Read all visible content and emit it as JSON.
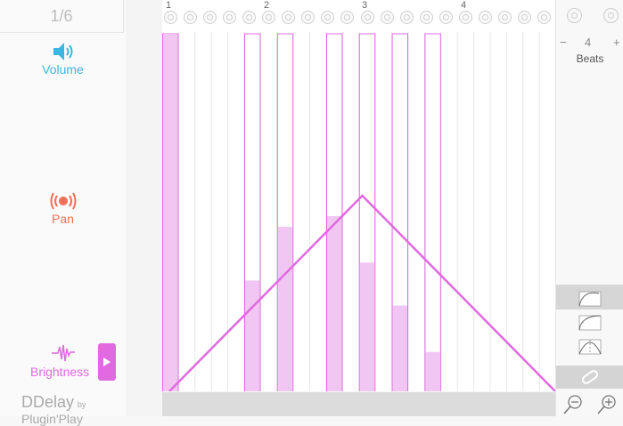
{
  "counter": {
    "text": "1/6"
  },
  "params": {
    "volume": {
      "label": "Volume"
    },
    "pan": {
      "label": "Pan"
    },
    "brightness": {
      "label": "Brightness"
    }
  },
  "brand": {
    "main": "DDelay",
    "by": "by",
    "maker": "Plugin'Play"
  },
  "ruler": {
    "beats": [
      "1",
      "2",
      "3",
      "4"
    ],
    "steps": 16
  },
  "steps": {
    "active": [
      true,
      false,
      false,
      false,
      false,
      true,
      false,
      true,
      false,
      false,
      true,
      false,
      true,
      false,
      true,
      false,
      true
    ],
    "level": [
      1.0,
      0,
      0,
      0,
      0,
      0.31,
      0,
      0.46,
      0,
      0,
      0.49,
      0,
      0.36,
      0,
      0.24,
      0,
      0.11
    ]
  },
  "envelope": {
    "points": [
      [
        0,
        0
      ],
      [
        0.5,
        1
      ],
      [
        1,
        0
      ]
    ]
  },
  "right_panel": {
    "minus": "−",
    "value": "4",
    "plus": "+",
    "unit": "Beats"
  },
  "colors": {
    "accent": "#e06ae0",
    "step_fill": "#f2c6f2",
    "volume": "#3cb6e0",
    "pan": "#f07055"
  }
}
